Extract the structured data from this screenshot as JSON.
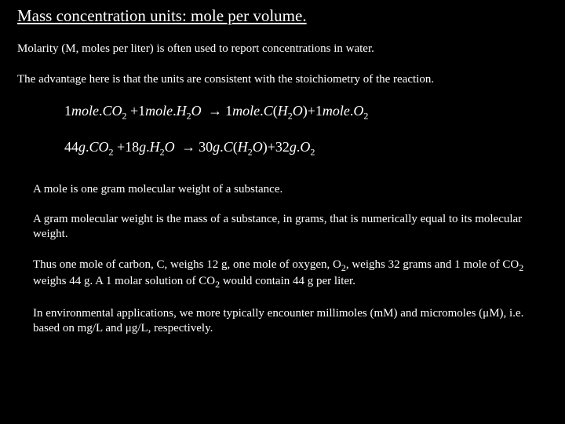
{
  "title": "Mass concentration units: mole per volume.",
  "p1": "Molarity (M, moles per liter) is often used to report concentrations in water.",
  "p2": "The advantage here is that the units are consistent with the stoichiometry of the reaction.",
  "eq1": {
    "t1": "1",
    "t2": "mole",
    "t3": "CO",
    "t4": "2",
    "t5": "+",
    "t6": "1",
    "t7": "mole",
    "t8": "H",
    "t9": "2",
    "t10": "O",
    "t11": "→",
    "t12": "1",
    "t13": "mole",
    "t14": "C",
    "t15": "(",
    "t16": "H",
    "t17": "2",
    "t18": "O",
    "t19": ")",
    "t20": "+",
    "t21": "1",
    "t22": "mole",
    "t23": "O",
    "t24": "2"
  },
  "eq2": {
    "t1": "44",
    "t2": "g",
    "t3": "CO",
    "t4": "2",
    "t5": "+",
    "t6": "18",
    "t7": "g",
    "t8": "H",
    "t9": "2",
    "t10": "O",
    "t11": "→",
    "t12": "30",
    "t13": "g",
    "t14": "C",
    "t15": "(",
    "t16": "H",
    "t17": "2",
    "t18": "O",
    "t19": ")",
    "t20": "+",
    "t21": "32",
    "t22": "g",
    "t23": "O",
    "t24": "2"
  },
  "p3": "A mole is one gram molecular weight of a substance.",
  "p4": "A gram molecular weight is the mass of a substance, in grams, that is numerically equal to its molecular weight.",
  "p5a": "Thus one mole of carbon, C, weighs 12 g, one mole of oxygen, O",
  "p5b": ", weighs 32 grams and 1 mole of CO",
  "p5c": " weighs 44 g.  A 1 molar solution of CO",
  "p5d": " would contain 44 g per liter.",
  "p6": "In environmental applications, we more typically encounter millimoles (mM) and micromoles (μM), i.e. based on mg/L and μg/L, respectively.",
  "sub2": "2"
}
